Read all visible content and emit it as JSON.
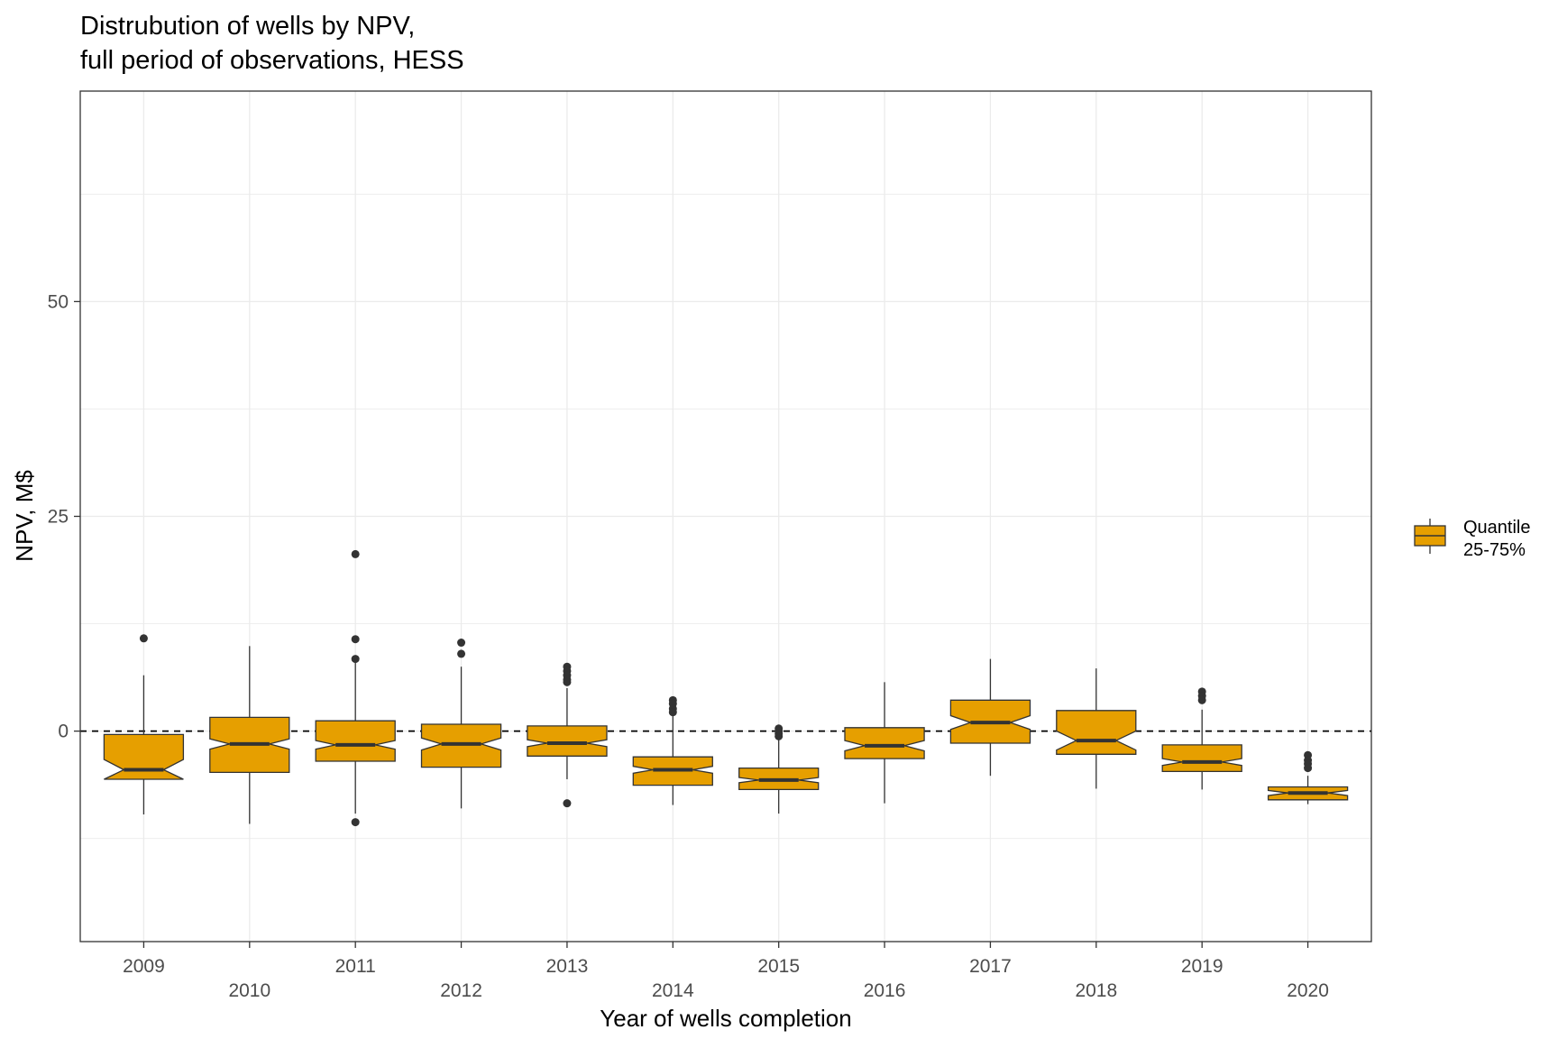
{
  "chart_data": {
    "type": "boxplot",
    "title": "Distrubution of wells by NPV,",
    "subtitle": "full period of observations, HESS",
    "xlabel": "Year of wells completion",
    "ylabel": "NPV, M$",
    "ylim": [
      -24.5,
      74.5
    ],
    "yticks": [
      0,
      25,
      50
    ],
    "reference_line": 0,
    "fill_color": "#E69F00",
    "grid": true,
    "legend_position": "right",
    "legend": {
      "lines": [
        "Quantile",
        "25-75%"
      ]
    },
    "boxes": [
      {
        "category": "2009",
        "whisker_low": -9.7,
        "q1": -5.6,
        "median": -4.5,
        "q3": -0.4,
        "whisker_high": 6.5,
        "notch_low": -5.6,
        "notch_high": -3.3,
        "outliers": [
          10.8
        ]
      },
      {
        "category": "2010",
        "whisker_low": -10.8,
        "q1": -4.8,
        "median": -1.5,
        "q3": 1.6,
        "whisker_high": 9.9,
        "notch_low": -2.1,
        "notch_high": -0.9,
        "outliers": []
      },
      {
        "category": "2011",
        "whisker_low": -9.6,
        "q1": -3.5,
        "median": -1.6,
        "q3": 1.2,
        "whisker_high": 8.3,
        "notch_low": -2.1,
        "notch_high": -1.1,
        "outliers": [
          20.6,
          10.7,
          8.4,
          -10.6
        ]
      },
      {
        "category": "2012",
        "whisker_low": -9.0,
        "q1": -4.2,
        "median": -1.5,
        "q3": 0.8,
        "whisker_high": 7.5,
        "notch_low": -2.2,
        "notch_high": -0.8,
        "outliers": [
          10.3,
          9.0
        ]
      },
      {
        "category": "2013",
        "whisker_low": -5.6,
        "q1": -2.9,
        "median": -1.4,
        "q3": 0.6,
        "whisker_high": 5.0,
        "notch_low": -1.8,
        "notch_high": -1.0,
        "outliers": [
          7.5,
          7.0,
          6.5,
          6.0,
          5.7,
          -8.4
        ]
      },
      {
        "category": "2014",
        "whisker_low": -8.6,
        "q1": -6.3,
        "median": -4.5,
        "q3": -3.0,
        "whisker_high": 1.9,
        "notch_low": -4.9,
        "notch_high": -4.1,
        "outliers": [
          3.6,
          3.2,
          2.6,
          2.2
        ]
      },
      {
        "category": "2015",
        "whisker_low": -9.6,
        "q1": -6.8,
        "median": -5.7,
        "q3": -4.3,
        "whisker_high": -1.0,
        "notch_low": -6.0,
        "notch_high": -5.4,
        "outliers": [
          0.3,
          0.0,
          -0.3,
          -0.6
        ]
      },
      {
        "category": "2016",
        "whisker_low": -8.4,
        "q1": -3.2,
        "median": -1.7,
        "q3": 0.4,
        "whisker_high": 5.7,
        "notch_low": -2.3,
        "notch_high": -1.1,
        "outliers": []
      },
      {
        "category": "2017",
        "whisker_low": -5.2,
        "q1": -1.4,
        "median": 1.0,
        "q3": 3.6,
        "whisker_high": 8.4,
        "notch_low": 0.2,
        "notch_high": 1.8,
        "outliers": []
      },
      {
        "category": "2018",
        "whisker_low": -6.7,
        "q1": -2.7,
        "median": -1.1,
        "q3": 2.4,
        "whisker_high": 7.3,
        "notch_low": -2.2,
        "notch_high": 0.0,
        "outliers": []
      },
      {
        "category": "2019",
        "whisker_low": -6.8,
        "q1": -4.7,
        "median": -3.6,
        "q3": -1.6,
        "whisker_high": 2.5,
        "notch_low": -4.0,
        "notch_high": -3.2,
        "outliers": [
          4.6,
          4.1,
          3.6
        ]
      },
      {
        "category": "2020",
        "whisker_low": -8.5,
        "q1": -8.0,
        "median": -7.2,
        "q3": -6.5,
        "whisker_high": -5.2,
        "notch_low": -7.5,
        "notch_high": -6.9,
        "outliers": [
          -2.8,
          -3.4,
          -3.8,
          -4.3
        ]
      }
    ]
  }
}
